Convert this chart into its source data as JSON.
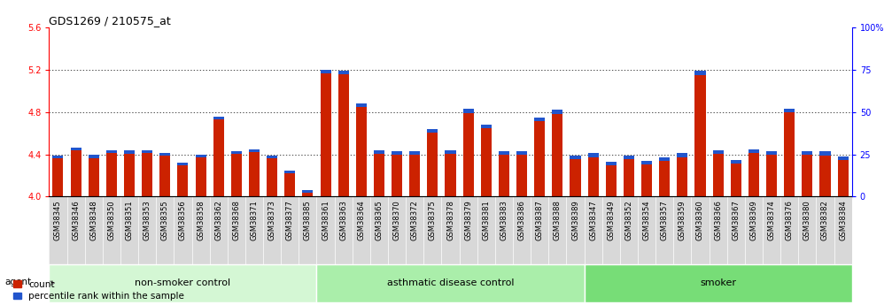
{
  "title": "GDS1269 / 210575_at",
  "categories": [
    "GSM38345",
    "GSM38346",
    "GSM38348",
    "GSM38350",
    "GSM38351",
    "GSM38353",
    "GSM38355",
    "GSM38356",
    "GSM38358",
    "GSM38362",
    "GSM38368",
    "GSM38371",
    "GSM38373",
    "GSM38377",
    "GSM38385",
    "GSM38361",
    "GSM38363",
    "GSM38364",
    "GSM38365",
    "GSM38370",
    "GSM38372",
    "GSM38375",
    "GSM38378",
    "GSM38379",
    "GSM38381",
    "GSM38383",
    "GSM38386",
    "GSM38387",
    "GSM38388",
    "GSM38389",
    "GSM38347",
    "GSM38349",
    "GSM38352",
    "GSM38354",
    "GSM38357",
    "GSM38359",
    "GSM38360",
    "GSM38366",
    "GSM38367",
    "GSM38369",
    "GSM38374",
    "GSM38376",
    "GSM38380",
    "GSM38382",
    "GSM38384"
  ],
  "red_values": [
    4.39,
    4.46,
    4.4,
    4.44,
    4.44,
    4.44,
    4.41,
    4.32,
    4.4,
    4.76,
    4.43,
    4.45,
    4.39,
    4.25,
    4.06,
    5.2,
    5.19,
    4.88,
    4.44,
    4.43,
    4.43,
    4.64,
    4.44,
    4.83,
    4.68,
    4.43,
    4.43,
    4.75,
    4.82,
    4.39,
    4.41,
    4.33,
    4.39,
    4.34,
    4.37,
    4.41,
    5.19,
    4.44,
    4.35,
    4.45,
    4.43,
    4.83,
    4.43,
    4.43,
    4.38
  ],
  "blue_heights": [
    0.025,
    0.025,
    0.035,
    0.03,
    0.035,
    0.025,
    0.025,
    0.025,
    0.025,
    0.025,
    0.025,
    0.025,
    0.025,
    0.025,
    0.025,
    0.035,
    0.035,
    0.035,
    0.035,
    0.035,
    0.035,
    0.035,
    0.035,
    0.04,
    0.035,
    0.035,
    0.035,
    0.035,
    0.035,
    0.035,
    0.035,
    0.035,
    0.035,
    0.035,
    0.035,
    0.035,
    0.04,
    0.035,
    0.035,
    0.035,
    0.035,
    0.035,
    0.035,
    0.04,
    0.035
  ],
  "groups": [
    {
      "label": "non-smoker control",
      "start": 0,
      "end": 15,
      "color": "#d4f7d4"
    },
    {
      "label": "asthmatic disease control",
      "start": 15,
      "end": 30,
      "color": "#aaeeaa"
    },
    {
      "label": "smoker",
      "start": 30,
      "end": 45,
      "color": "#77dd77"
    }
  ],
  "ymin": 4.0,
  "ymax": 5.6,
  "yticks": [
    4.0,
    4.4,
    4.8,
    5.2,
    5.6
  ],
  "right_y_vals": [
    4.0,
    4.4,
    4.8,
    5.2,
    5.6
  ],
  "right_labels": [
    "0",
    "25",
    "50",
    "75",
    "100%"
  ],
  "bar_color_red": "#cc2200",
  "bar_color_blue": "#2255cc",
  "bg_color": "#ffffff",
  "title_fontsize": 9,
  "tick_fontsize": 6,
  "group_label_fontsize": 8,
  "legend_fontsize": 7.5,
  "xtick_bg": "#d8d8d8",
  "bar_width": 0.6
}
